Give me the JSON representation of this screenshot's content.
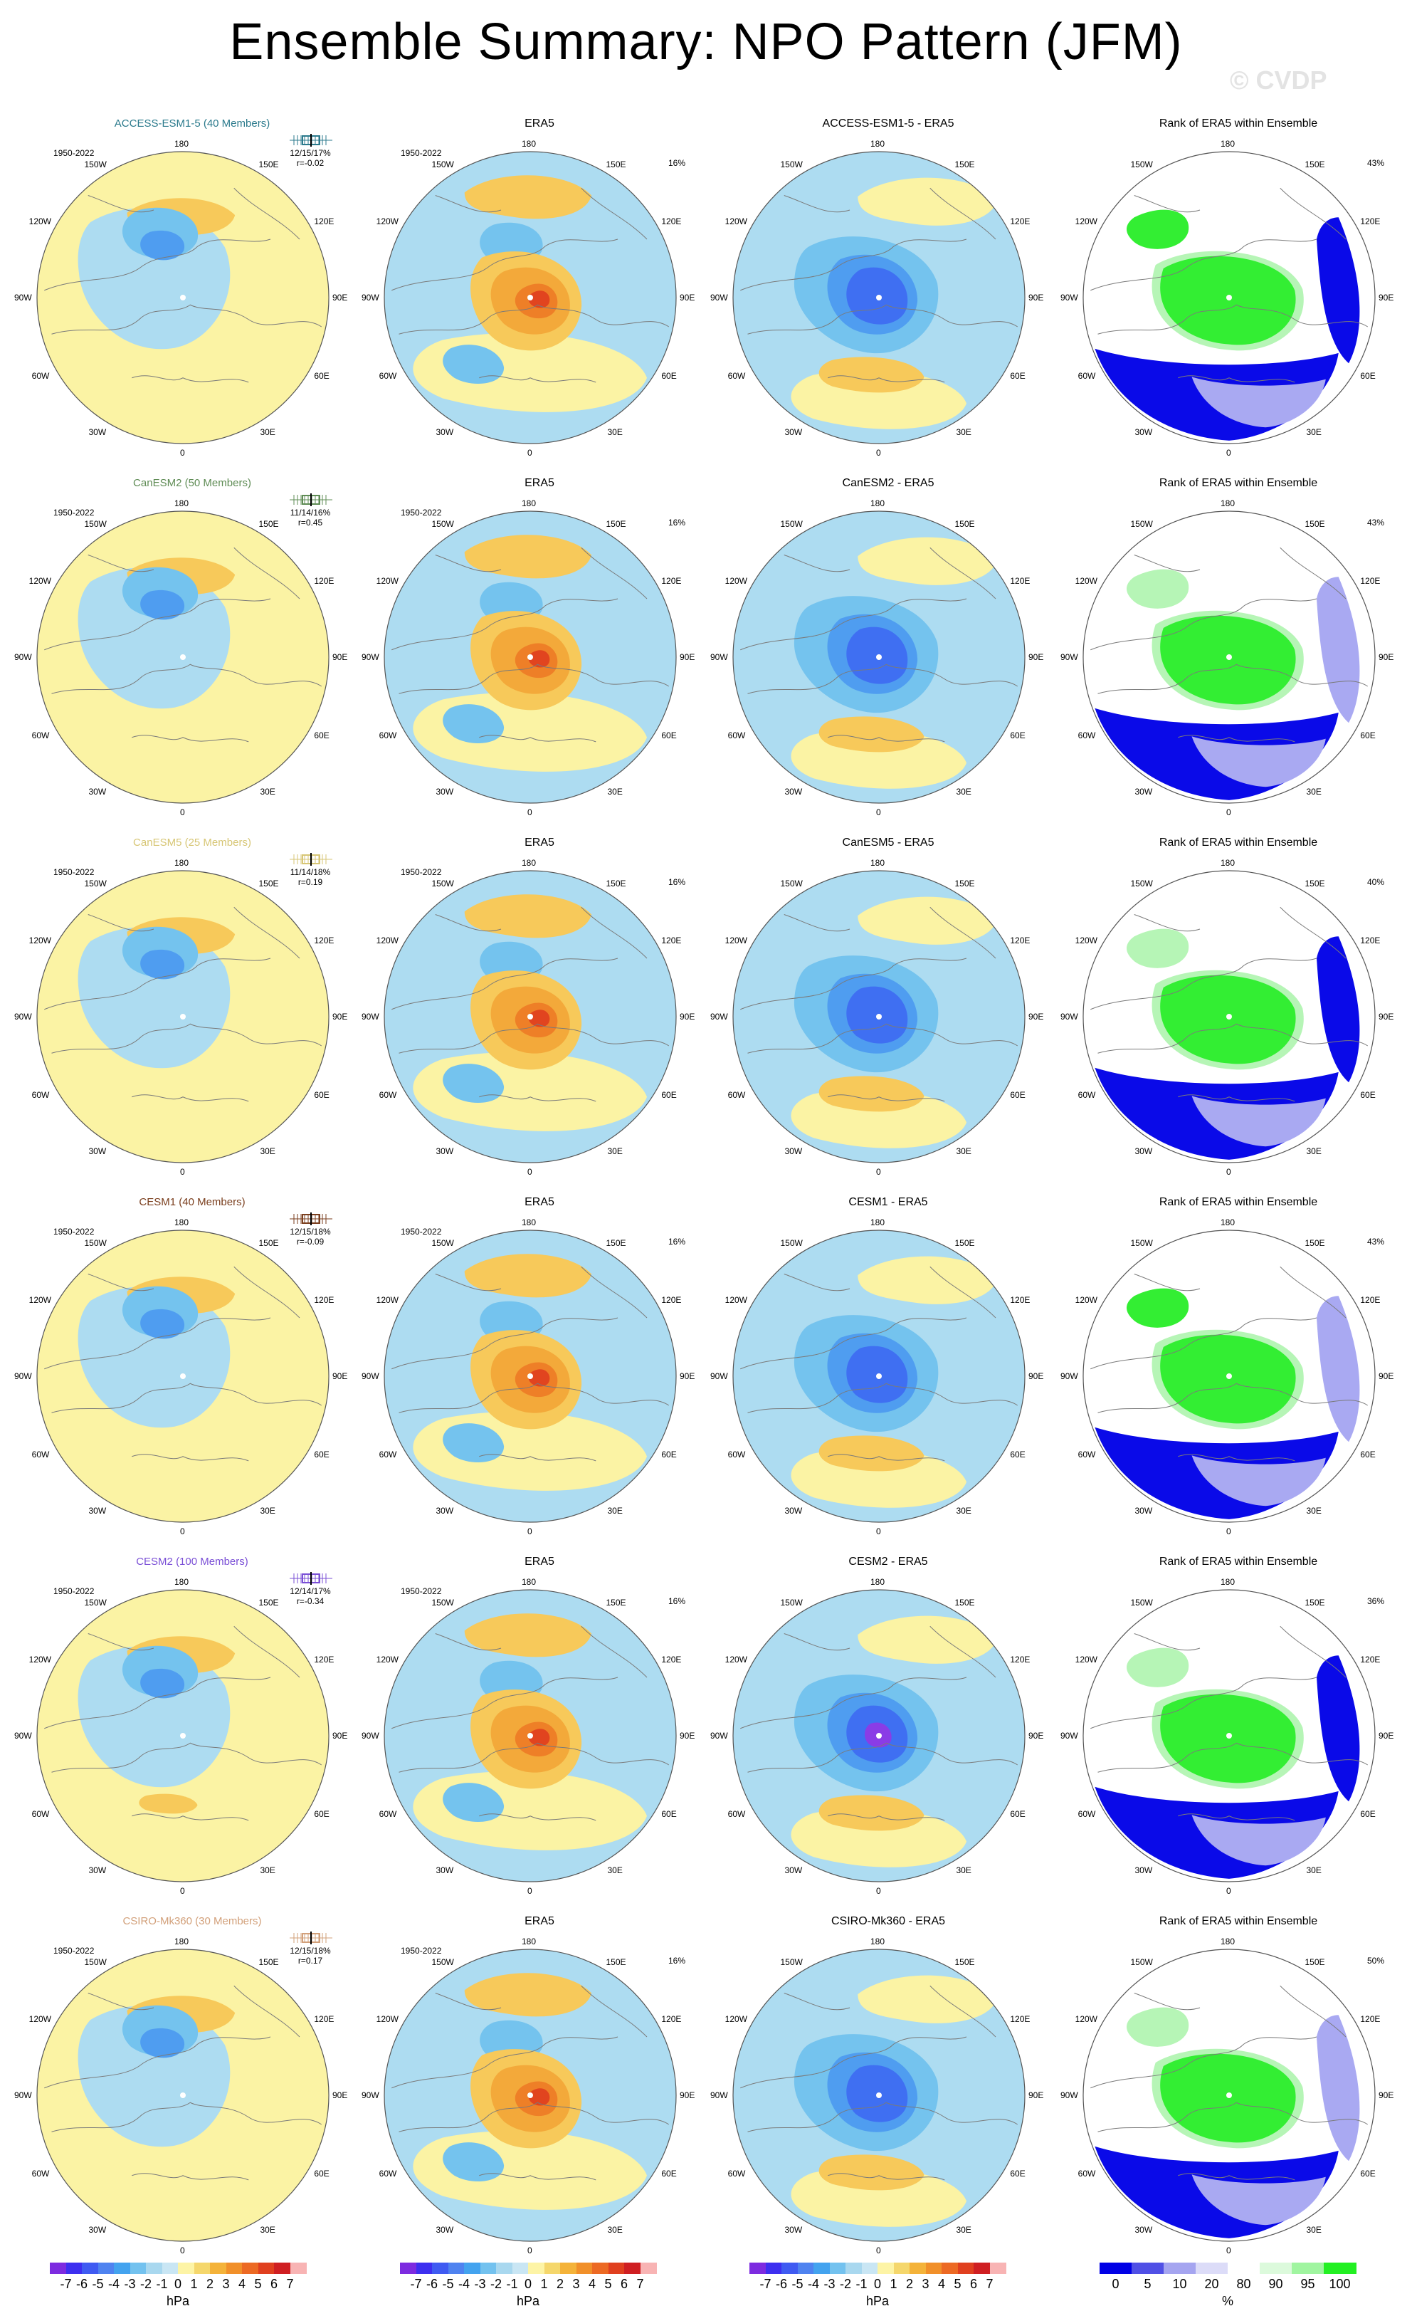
{
  "title": "Ensemble Summary: NPO Pattern (JFM)",
  "watermark": "© CVDP",
  "map_labels": {
    "top": "180",
    "bottom": "0",
    "left": "90W",
    "right": "90E",
    "upper_left_1": "150W",
    "upper_left_2": "120W",
    "upper_right_1": "150E",
    "upper_right_2": "120E",
    "lower_left_1": "60W",
    "lower_left_2": "30W",
    "lower_right_1": "60E",
    "lower_right_2": "30E"
  },
  "rows": [
    {
      "model": "ACCESS-ESM1-5 (40 Members)",
      "model_color": "#2b7a8c",
      "period": "1950-2022",
      "stats1": "12/15/17%",
      "stats2": "r=-0.02",
      "obs_title": "ERA5",
      "obs_period": "1950-2022",
      "obs_pct": "16%",
      "diff_title": "ACCESS-ESM1-5 - ERA5",
      "rank_title": "Rank of ERA5 within Ensemble",
      "rank_pct": "43%"
    },
    {
      "model": "CanESM2 (50 Members)",
      "model_color": "#5f8c55",
      "period": "1950-2022",
      "stats1": "11/14/16%",
      "stats2": "r=0.45",
      "obs_title": "ERA5",
      "obs_period": "1950-2022",
      "obs_pct": "16%",
      "diff_title": "CanESM2 - ERA5",
      "rank_title": "Rank of ERA5 within Ensemble",
      "rank_pct": "43%"
    },
    {
      "model": "CanESM5 (25 Members)",
      "model_color": "#d7c675",
      "period": "1950-2022",
      "stats1": "11/14/18%",
      "stats2": "r=0.19",
      "obs_title": "ERA5",
      "obs_period": "1950-2022",
      "obs_pct": "16%",
      "diff_title": "CanESM5 - ERA5",
      "rank_title": "Rank of ERA5 within Ensemble",
      "rank_pct": "40%"
    },
    {
      "model": "CESM1 (40 Members)",
      "model_color": "#7a3e1d",
      "period": "1950-2022",
      "stats1": "12/15/18%",
      "stats2": "r=-0.09",
      "obs_title": "ERA5",
      "obs_period": "1950-2022",
      "obs_pct": "16%",
      "diff_title": "CESM1 - ERA5",
      "rank_title": "Rank of ERA5 within Ensemble",
      "rank_pct": "43%"
    },
    {
      "model": "CESM2 (100 Members)",
      "model_color": "#7a4fd6",
      "period": "1950-2022",
      "stats1": "12/14/17%",
      "stats2": "r=-0.34",
      "obs_title": "ERA5",
      "obs_period": "1950-2022",
      "obs_pct": "16%",
      "diff_title": "CESM2 - ERA5",
      "rank_title": "Rank of ERA5 within Ensemble",
      "rank_pct": "36%"
    },
    {
      "model": "CSIRO-Mk360 (30 Members)",
      "model_color": "#d2a07a",
      "period": "1950-2022",
      "stats1": "12/15/18%",
      "stats2": "r=0.17",
      "obs_title": "ERA5",
      "obs_period": "1950-2022",
      "obs_pct": "16%",
      "diff_title": "CSIRO-Mk360 - ERA5",
      "rank_title": "Rank of ERA5 within Ensemble",
      "rank_pct": "50%"
    }
  ],
  "colorbar_hpa": {
    "ticks": [
      "-7",
      "-6",
      "-5",
      "-4",
      "-3",
      "-2",
      "-1",
      "0",
      "1",
      "2",
      "3",
      "4",
      "5",
      "6",
      "7"
    ],
    "unit": "hPa",
    "colors": [
      "#7d2be0",
      "#3d2ff0",
      "#3f5bf2",
      "#4f83f0",
      "#43a3ef",
      "#73c2ef",
      "#a9d8ef",
      "#c9e6f4",
      "#fdf4a6",
      "#f5d76c",
      "#f4b33a",
      "#f1902a",
      "#ec6a24",
      "#e0401f",
      "#cf1f22",
      "#f8b4b4"
    ]
  },
  "colorbar_rank": {
    "ticks": [
      "0",
      "5",
      "10",
      "20",
      "80",
      "90",
      "95",
      "100"
    ],
    "unit": "%",
    "colors": [
      "#0000e6",
      "#5050e6",
      "#a5a5f0",
      "#dcdcf8",
      "#ffffff",
      "#dcfadc",
      "#a0f5a0",
      "#22f022"
    ]
  },
  "palette": {
    "yellow": "#fbf3a4",
    "lightblue": "#addcf1",
    "blue1": "#74c3ee",
    "blue2": "#4f9df0",
    "blue3": "#3f6ff2",
    "blue4": "#3b3bea",
    "orange1": "#f7c95a",
    "orange2": "#f3a93a",
    "orange3": "#ee7f27",
    "red": "#e1441f",
    "green": "#33ee33",
    "lightgreen": "#b6f5b6",
    "rankblue": "#0a0ae8",
    "rankmid": "#a9a9f2"
  }
}
